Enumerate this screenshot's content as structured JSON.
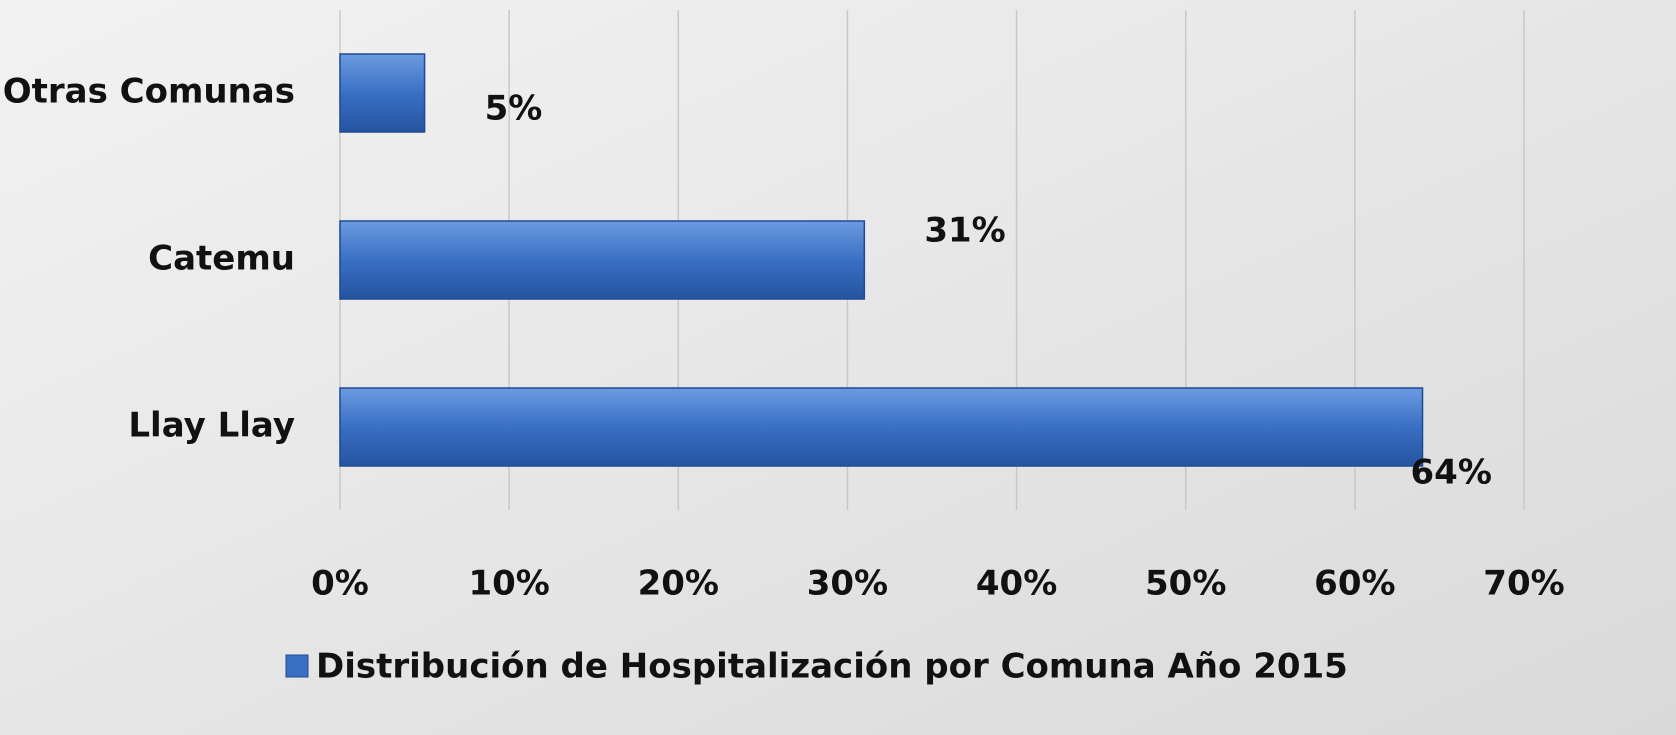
{
  "chart_data": {
    "type": "hbar",
    "categories": [
      "Otras Comunas",
      "Catemu",
      "Llay Llay"
    ],
    "series": [
      {
        "name": "Distribución de Hospitalización por Comuna Año 2015",
        "color": "#3a6fc4",
        "values": [
          5,
          31,
          64
        ],
        "value_labels": [
          "5%",
          "31%",
          "64%"
        ]
      }
    ],
    "xlim": [
      0,
      70
    ],
    "xticks": [
      {
        "value": 0,
        "label": "0%"
      },
      {
        "value": 10,
        "label": "10%"
      },
      {
        "value": 20,
        "label": "20%"
      },
      {
        "value": 30,
        "label": "30%"
      },
      {
        "value": 40,
        "label": "40%"
      },
      {
        "value": 50,
        "label": "50%"
      },
      {
        "value": 60,
        "label": "60%"
      },
      {
        "value": 70,
        "label": "70%"
      }
    ],
    "grid": true,
    "legend": "bottom"
  }
}
